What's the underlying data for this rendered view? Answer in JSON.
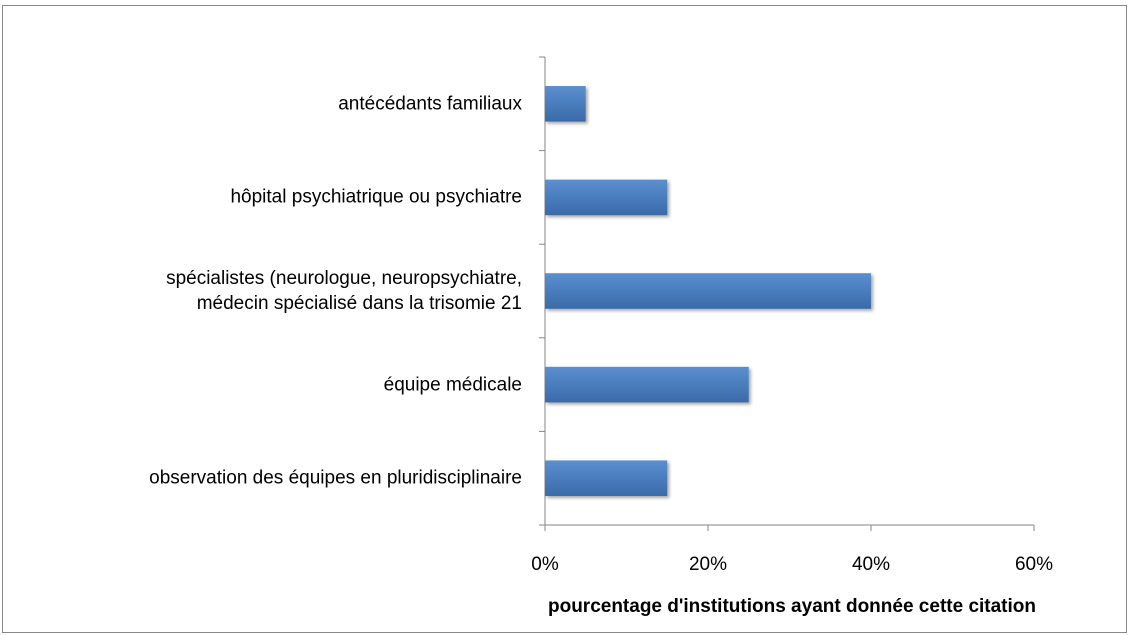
{
  "chart_data": {
    "type": "bar",
    "orientation": "horizontal",
    "categories": [
      "antécédants familiaux",
      "hôpital psychiatrique ou psychiatre",
      "spécialistes (neurologue, neuropsychiatre,\nmédecin spécialisé dans la trisomie 21",
      "équipe médicale",
      "observation des équipes en pluridisciplinaire"
    ],
    "values": [
      5,
      15,
      40,
      25,
      15
    ],
    "color": "#4a7ebb",
    "xlabel": "pourcentage d'institutions ayant donnée cette citation",
    "xlim": [
      0,
      60
    ],
    "xticks": [
      {
        "value": 0,
        "label": "0%"
      },
      {
        "value": 20,
        "label": "20%"
      },
      {
        "value": 40,
        "label": "40%"
      },
      {
        "value": 60,
        "label": "60%"
      }
    ],
    "grid": false
  }
}
